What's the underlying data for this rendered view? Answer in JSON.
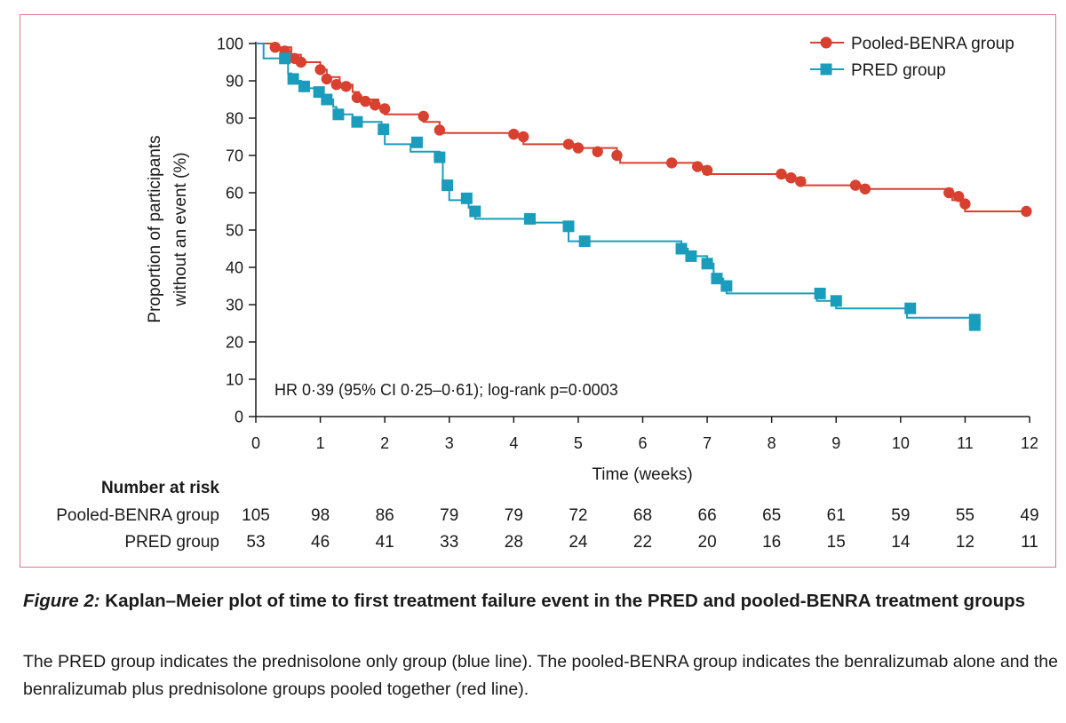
{
  "chart_data": {
    "type": "line",
    "subtype": "kaplan-meier-step",
    "ylabel_line1": "Proportion of participants",
    "ylabel_line2": "without an event (%)",
    "xlabel": "Time (weeks)",
    "xlim": [
      0,
      12
    ],
    "ylim": [
      0,
      100
    ],
    "x_ticks": [
      "0",
      "1",
      "2",
      "3",
      "4",
      "5",
      "6",
      "7",
      "8",
      "9",
      "10",
      "11",
      "12"
    ],
    "y_ticks": [
      "0",
      "10",
      "20",
      "30",
      "40",
      "50",
      "60",
      "70",
      "80",
      "90",
      "100"
    ],
    "legend_position": "top-right",
    "annotation": "HR 0·39 (95% CI 0·25–0·61); log-rank p=0·0003",
    "series": [
      {
        "name": "Pooled-BENRA group",
        "color": "#d8402f",
        "marker": "circle",
        "steps": [
          [
            0,
            100
          ],
          [
            0.3,
            99
          ],
          [
            0.55,
            97
          ],
          [
            0.7,
            95
          ],
          [
            1.0,
            93
          ],
          [
            1.1,
            91
          ],
          [
            1.3,
            89
          ],
          [
            1.5,
            87
          ],
          [
            1.6,
            85
          ],
          [
            1.9,
            83
          ],
          [
            2.0,
            81
          ],
          [
            2.6,
            79
          ],
          [
            2.85,
            76
          ],
          [
            4.0,
            75
          ],
          [
            4.15,
            73
          ],
          [
            4.95,
            72
          ],
          [
            5.6,
            70
          ],
          [
            5.65,
            68
          ],
          [
            6.8,
            67
          ],
          [
            6.95,
            65
          ],
          [
            8.2,
            64
          ],
          [
            8.5,
            62
          ],
          [
            9.4,
            61
          ],
          [
            10.8,
            58
          ],
          [
            11.0,
            55
          ],
          [
            12.0,
            55
          ]
        ],
        "censored": [
          [
            0.3,
            99
          ],
          [
            0.45,
            98
          ],
          [
            0.6,
            96
          ],
          [
            0.7,
            95
          ],
          [
            1.0,
            93
          ],
          [
            1.1,
            90.5
          ],
          [
            1.25,
            89
          ],
          [
            1.4,
            88.5
          ],
          [
            1.57,
            85.5
          ],
          [
            1.7,
            84.5
          ],
          [
            1.85,
            83.5
          ],
          [
            2.0,
            82.5
          ],
          [
            2.6,
            80.5
          ],
          [
            2.85,
            76.8
          ],
          [
            4.0,
            75.7
          ],
          [
            4.15,
            75
          ],
          [
            4.85,
            73
          ],
          [
            5.0,
            72
          ],
          [
            5.3,
            71
          ],
          [
            5.6,
            70
          ],
          [
            6.45,
            68
          ],
          [
            6.85,
            67
          ],
          [
            7.0,
            66
          ],
          [
            8.15,
            65
          ],
          [
            8.3,
            64
          ],
          [
            8.45,
            63
          ],
          [
            9.3,
            62
          ],
          [
            9.45,
            61
          ],
          [
            10.75,
            60
          ],
          [
            10.9,
            59
          ],
          [
            11.0,
            57
          ],
          [
            11.95,
            55
          ]
        ]
      },
      {
        "name": "PRED group",
        "color": "#1a9cbc",
        "marker": "square",
        "steps": [
          [
            0,
            100
          ],
          [
            0.12,
            96
          ],
          [
            0.5,
            92
          ],
          [
            0.55,
            90
          ],
          [
            0.7,
            88
          ],
          [
            0.95,
            87
          ],
          [
            1.05,
            85
          ],
          [
            1.2,
            83
          ],
          [
            1.25,
            81
          ],
          [
            1.5,
            79
          ],
          [
            1.95,
            77
          ],
          [
            2.0,
            73
          ],
          [
            2.4,
            71
          ],
          [
            2.85,
            69
          ],
          [
            2.9,
            63
          ],
          [
            3.0,
            58
          ],
          [
            3.3,
            56
          ],
          [
            3.4,
            53
          ],
          [
            4.3,
            52
          ],
          [
            4.85,
            47
          ],
          [
            6.6,
            45
          ],
          [
            6.7,
            43
          ],
          [
            7.0,
            41
          ],
          [
            7.1,
            37
          ],
          [
            7.25,
            35
          ],
          [
            7.3,
            33
          ],
          [
            8.7,
            31
          ],
          [
            9.0,
            29
          ],
          [
            10.1,
            26.5
          ],
          [
            11.2,
            26.5
          ]
        ],
        "censored": [
          [
            0.45,
            96
          ],
          [
            0.58,
            90.5
          ],
          [
            0.75,
            88.5
          ],
          [
            0.98,
            87
          ],
          [
            1.1,
            85
          ],
          [
            1.28,
            81
          ],
          [
            1.57,
            79
          ],
          [
            1.98,
            77
          ],
          [
            2.5,
            73.5
          ],
          [
            2.85,
            69.5
          ],
          [
            2.97,
            62
          ],
          [
            3.27,
            58.5
          ],
          [
            3.4,
            55
          ],
          [
            4.25,
            53
          ],
          [
            4.85,
            51
          ],
          [
            5.1,
            47
          ],
          [
            6.6,
            45
          ],
          [
            6.75,
            43
          ],
          [
            7.0,
            41
          ],
          [
            7.15,
            37
          ],
          [
            7.3,
            35
          ],
          [
            8.75,
            33
          ],
          [
            9.0,
            31
          ],
          [
            10.15,
            29
          ],
          [
            11.15,
            26
          ],
          [
            11.15,
            24.5
          ]
        ]
      }
    ],
    "number_at_risk": {
      "heading": "Number at risk",
      "rows": [
        {
          "label": "Pooled-BENRA group",
          "values": [
            "105",
            "98",
            "86",
            "79",
            "79",
            "72",
            "68",
            "66",
            "65",
            "61",
            "59",
            "55",
            "49"
          ]
        },
        {
          "label": "PRED group",
          "values": [
            "53",
            "46",
            "41",
            "33",
            "28",
            "24",
            "22",
            "20",
            "16",
            "15",
            "14",
            "12",
            "11"
          ]
        }
      ]
    }
  },
  "caption": {
    "figure_label": "Figure 2:",
    "title": " Kaplan–Meier plot of time to first treatment failure event in the PRED and pooled-BENRA treatment groups",
    "body": "The PRED group indicates the prednisolone only group (blue line). The pooled-BENRA group indicates the benralizumab alone and the benralizumab plus prednisolone groups pooled together (red line)."
  }
}
